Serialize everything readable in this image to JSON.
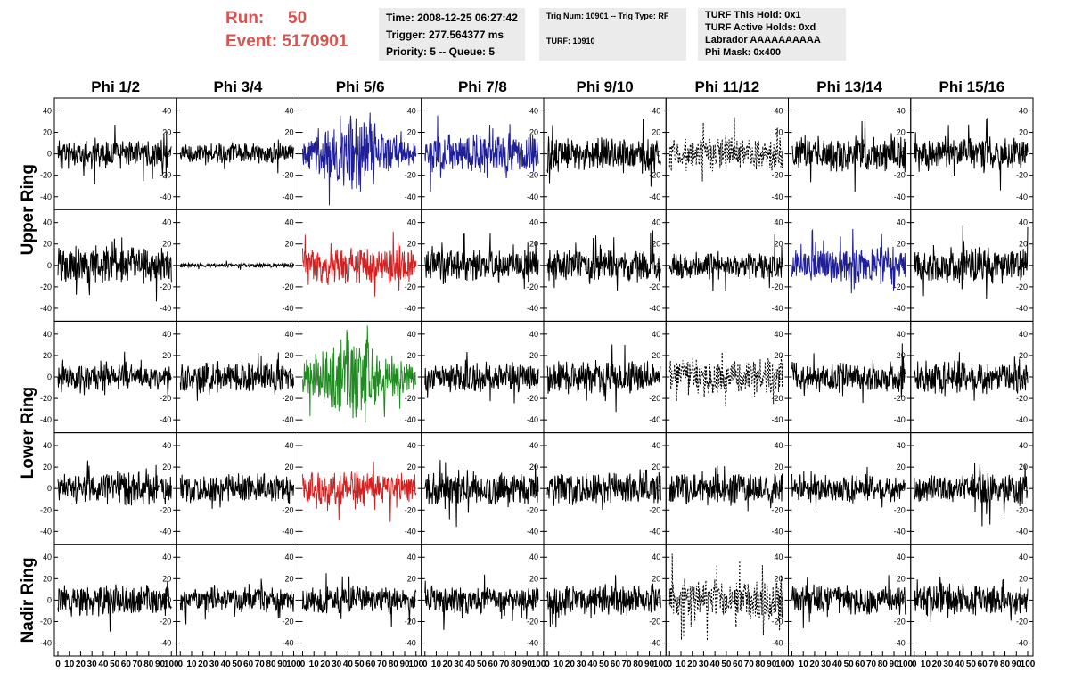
{
  "header": {
    "run_label": "Run:",
    "run_value": "50",
    "event_label": "Event:",
    "event_value": "5170901",
    "time": "Time: 2008-12-25 06:27:42",
    "trigger": "Trigger: 277.564377 ms",
    "priority": "Priority: 5 -- Queue: 5",
    "trig_num": "Trig Num: 10901 -- Trig Type: RF",
    "turf": "TURF: 10910",
    "turf_hold": "TURF This Hold: 0x1",
    "turf_active": "TURF Active Holds: 0xd",
    "labrador": "Labrador AAAAAAAAAA",
    "phi_mask": "Phi Mask: 0x400"
  },
  "colors": {
    "header_red": "#d9534f",
    "info_bg": "#ebebeb",
    "trace_black": "#000000",
    "trace_blue": "#1f1f9a",
    "trace_red": "#d42020",
    "trace_green": "#1e8c1e"
  },
  "chart_data": {
    "type": "line",
    "columns": [
      "Phi 1/2",
      "Phi 3/4",
      "Phi 5/6",
      "Phi 7/8",
      "Phi 9/10",
      "Phi 11/12",
      "Phi 13/14",
      "Phi 15/16"
    ],
    "ring_labels": [
      {
        "text": "Upper Ring"
      },
      {
        "text": "Lower Ring"
      },
      {
        "text": "Nadir Ring"
      }
    ],
    "ylim": [
      -52,
      52
    ],
    "yticks": [
      -40,
      -20,
      0,
      20,
      40
    ],
    "xlim": [
      0,
      100
    ],
    "xtick_labels": [
      "0",
      "10",
      "20",
      "30",
      "40",
      "50",
      "60",
      "70",
      "80",
      "90",
      "100"
    ],
    "grid": false,
    "panels": [
      {
        "row": 0,
        "col": 0,
        "amp": 11,
        "color": "black",
        "style": "solid",
        "seed": 11
      },
      {
        "row": 0,
        "col": 1,
        "amp": 8,
        "color": "black",
        "style": "solid",
        "seed": 12
      },
      {
        "row": 0,
        "col": 2,
        "amp": 14,
        "color": "blue",
        "style": "solid",
        "seed": 13,
        "burst": true
      },
      {
        "row": 0,
        "col": 3,
        "amp": 14,
        "color": "blue",
        "style": "solid",
        "seed": 14
      },
      {
        "row": 0,
        "col": 4,
        "amp": 13,
        "color": "black",
        "style": "solid",
        "seed": 15
      },
      {
        "row": 0,
        "col": 5,
        "amp": 12,
        "color": "black",
        "style": "dashed",
        "seed": 16
      },
      {
        "row": 0,
        "col": 6,
        "amp": 13,
        "color": "black",
        "style": "solid",
        "seed": 17
      },
      {
        "row": 0,
        "col": 7,
        "amp": 12,
        "color": "black",
        "style": "solid",
        "seed": 18
      },
      {
        "row": 1,
        "col": 0,
        "amp": 14,
        "color": "black",
        "style": "solid",
        "seed": 21
      },
      {
        "row": 1,
        "col": 1,
        "amp": 1.5,
        "color": "black",
        "style": "solid",
        "seed": 22
      },
      {
        "row": 1,
        "col": 2,
        "amp": 14,
        "color": "red",
        "style": "solid",
        "seed": 23
      },
      {
        "row": 1,
        "col": 3,
        "amp": 12,
        "color": "black",
        "style": "solid",
        "seed": 24
      },
      {
        "row": 1,
        "col": 4,
        "amp": 12,
        "color": "black",
        "style": "solid",
        "seed": 25
      },
      {
        "row": 1,
        "col": 5,
        "amp": 10,
        "color": "black",
        "style": "solid",
        "seed": 26
      },
      {
        "row": 1,
        "col": 6,
        "amp": 13,
        "color": "blue",
        "style": "solid",
        "seed": 27
      },
      {
        "row": 1,
        "col": 7,
        "amp": 13,
        "color": "black",
        "style": "solid",
        "seed": 28
      },
      {
        "row": 2,
        "col": 0,
        "amp": 9,
        "color": "black",
        "style": "solid",
        "seed": 31
      },
      {
        "row": 2,
        "col": 1,
        "amp": 11,
        "color": "black",
        "style": "solid",
        "seed": 32
      },
      {
        "row": 2,
        "col": 2,
        "amp": 16,
        "color": "green",
        "style": "solid",
        "seed": 33,
        "burst": true
      },
      {
        "row": 2,
        "col": 3,
        "amp": 11,
        "color": "black",
        "style": "solid",
        "seed": 34
      },
      {
        "row": 2,
        "col": 4,
        "amp": 12,
        "color": "black",
        "style": "solid",
        "seed": 35
      },
      {
        "row": 2,
        "col": 5,
        "amp": 14,
        "color": "black",
        "style": "dashed",
        "seed": 36
      },
      {
        "row": 2,
        "col": 6,
        "amp": 11,
        "color": "black",
        "style": "solid",
        "seed": 37
      },
      {
        "row": 2,
        "col": 7,
        "amp": 12,
        "color": "black",
        "style": "solid",
        "seed": 38
      },
      {
        "row": 3,
        "col": 0,
        "amp": 12,
        "color": "black",
        "style": "solid",
        "seed": 41
      },
      {
        "row": 3,
        "col": 1,
        "amp": 10,
        "color": "black",
        "style": "solid",
        "seed": 42
      },
      {
        "row": 3,
        "col": 2,
        "amp": 12,
        "color": "red",
        "style": "solid",
        "seed": 43
      },
      {
        "row": 3,
        "col": 3,
        "amp": 13,
        "color": "black",
        "style": "solid",
        "seed": 44
      },
      {
        "row": 3,
        "col": 4,
        "amp": 12,
        "color": "black",
        "style": "solid",
        "seed": 45
      },
      {
        "row": 3,
        "col": 5,
        "amp": 12,
        "color": "black",
        "style": "solid",
        "seed": 46
      },
      {
        "row": 3,
        "col": 6,
        "amp": 10,
        "color": "black",
        "style": "solid",
        "seed": 47
      },
      {
        "row": 3,
        "col": 7,
        "amp": 12,
        "color": "black",
        "style": "solid",
        "seed": 48
      },
      {
        "row": 4,
        "col": 0,
        "amp": 11,
        "color": "black",
        "style": "solid",
        "seed": 51
      },
      {
        "row": 4,
        "col": 1,
        "amp": 9,
        "color": "black",
        "style": "solid",
        "seed": 52
      },
      {
        "row": 4,
        "col": 2,
        "amp": 10,
        "color": "black",
        "style": "solid",
        "seed": 53
      },
      {
        "row": 4,
        "col": 3,
        "amp": 10,
        "color": "black",
        "style": "solid",
        "seed": 54
      },
      {
        "row": 4,
        "col": 4,
        "amp": 11,
        "color": "black",
        "style": "solid",
        "seed": 55
      },
      {
        "row": 4,
        "col": 5,
        "amp": 15,
        "color": "black",
        "style": "dashed",
        "seed": 56
      },
      {
        "row": 4,
        "col": 6,
        "amp": 11,
        "color": "black",
        "style": "solid",
        "seed": 57
      },
      {
        "row": 4,
        "col": 7,
        "amp": 12,
        "color": "black",
        "style": "solid",
        "seed": 58
      }
    ]
  }
}
